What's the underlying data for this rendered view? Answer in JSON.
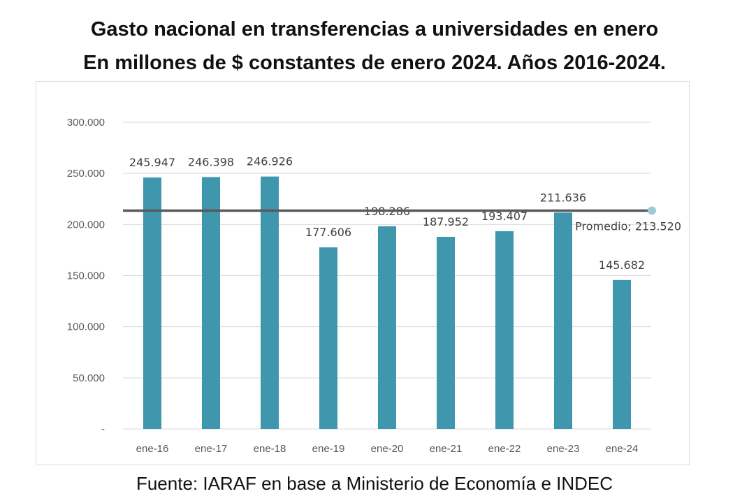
{
  "chart_data": {
    "type": "bar",
    "title": "Gasto nacional en transferencias a universidades en enero",
    "subtitle": "En millones de $ constantes de enero 2024. Años 2016-2024.",
    "source": "Fuente: IARAF en base a Ministerio de Economía e INDEC",
    "categories": [
      "ene-16",
      "ene-17",
      "ene-18",
      "ene-19",
      "ene-20",
      "ene-21",
      "ene-22",
      "ene-23",
      "ene-24"
    ],
    "values": [
      245947,
      246398,
      246926,
      177606,
      198286,
      187952,
      193407,
      211636,
      145682
    ],
    "value_labels": [
      "245.947",
      "246.398",
      "246.926",
      "177.606",
      "198.286",
      "187.952",
      "193.407",
      "211.636",
      "145.682"
    ],
    "ylim": [
      0,
      300000
    ],
    "yticks": [
      0,
      50000,
      100000,
      150000,
      200000,
      250000,
      300000
    ],
    "ytick_labels": [
      "-",
      "50.000",
      "100.000",
      "150.000",
      "200.000",
      "250.000",
      "300.000"
    ],
    "reference_line": {
      "label": "Promedio",
      "value": 213520,
      "value_label": "213.520"
    },
    "grid": true,
    "colors": {
      "bar": "#3e97ad",
      "line": "#595959",
      "marker": "#9fcad8",
      "grid": "#d9d9d9"
    }
  }
}
